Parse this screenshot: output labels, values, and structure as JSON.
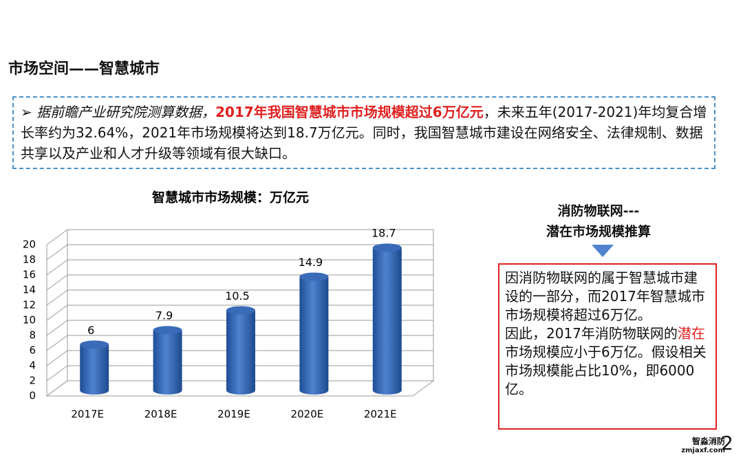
{
  "header": {
    "title": "市场空间——智慧城市"
  },
  "summary": {
    "bullet": "➢",
    "lead": "据前瞻产业研究院测算数据，",
    "highlight": "2017年我国智慧城市市场规模超过6万亿元",
    "rest": "，未来五年(2017-2021)年均复合增长率约为32.64%，2021年市场规模将达到18.7万亿元。同时，我国智慧城市建设在网络安全、法律规制、数据共享以及产业和人才升级等领域有很大缺口。"
  },
  "chart_data": {
    "type": "bar",
    "title": "智慧城市市场规模：万亿元",
    "categories": [
      "2017E",
      "2018E",
      "2019E",
      "2020E",
      "2021E"
    ],
    "values": [
      6,
      7.9,
      10.5,
      14.9,
      18.7
    ],
    "color": "#3a6bb8",
    "ylim": [
      0,
      20
    ],
    "yticks": [
      0,
      2,
      4,
      6,
      8,
      10,
      12,
      14,
      16,
      18,
      20
    ],
    "grid": true
  },
  "estimate": {
    "title_lines": [
      "消防物联网---",
      "潜在市场规模推算"
    ],
    "text_1": "因消防物联网的属于智慧城市建设的一部分，而2017年智慧城市市场规模将超过6万亿。",
    "text_2a": "因此，2017年消防物联网的",
    "text_2b": "潜在",
    "text_2c": "市场规模应小于6万亿。假设相关市场规模能占比10%，即6000亿。"
  },
  "footer": {
    "logo": "智淼消防",
    "url": "zmjaxf.com",
    "page": "2"
  }
}
